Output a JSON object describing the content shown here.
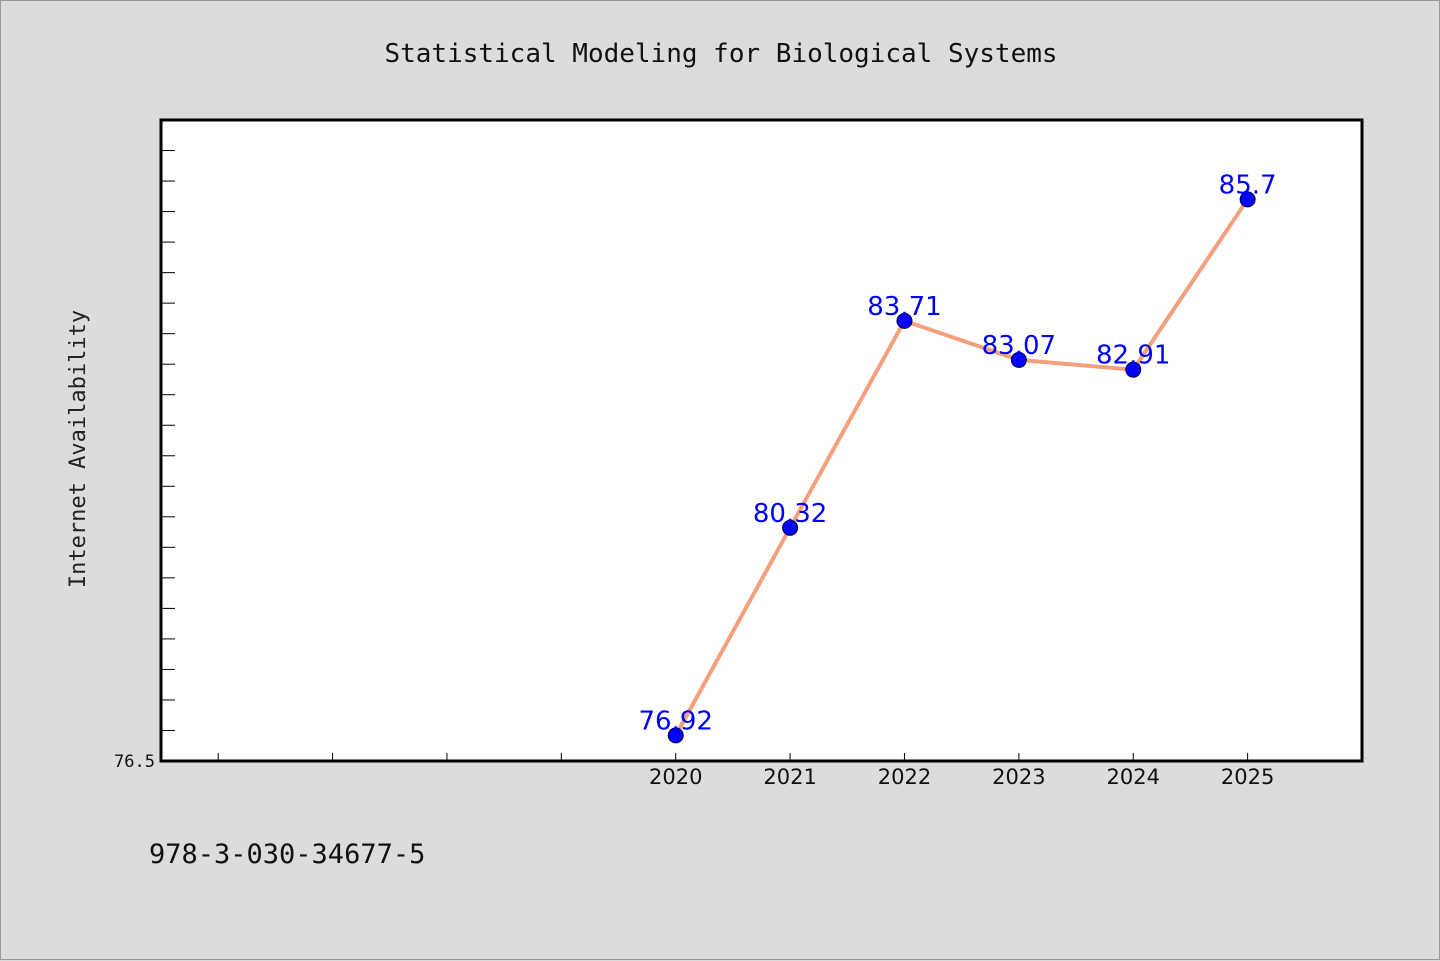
{
  "chart_data": {
    "type": "line",
    "title": "Statistical Modeling for Biological Systems",
    "ylabel": "Internet Availability",
    "xlabel": "",
    "categories": [
      "2020",
      "2021",
      "2022",
      "2023",
      "2024",
      "2025"
    ],
    "series": [
      {
        "values": [
          76.92,
          80.32,
          83.71,
          83.07,
          82.91,
          85.7
        ],
        "labels": [
          "76.92",
          "80.32",
          "83.71",
          "83.07",
          "82.91",
          "85.7"
        ]
      }
    ],
    "ylim": [
      76.5,
      87.0
    ],
    "xlim": [
      2015.5,
      2026.0
    ],
    "ytick_labels": [
      "76.5"
    ],
    "grid": false,
    "legend": "none"
  },
  "footer": {
    "isbn": "978-3-030-34677-5"
  },
  "colors": {
    "background": "#dcdcdc",
    "plot_area": "#ffffff",
    "line": "#f4a07c",
    "marker": "#0000ff",
    "data_label": "#0000ff"
  }
}
